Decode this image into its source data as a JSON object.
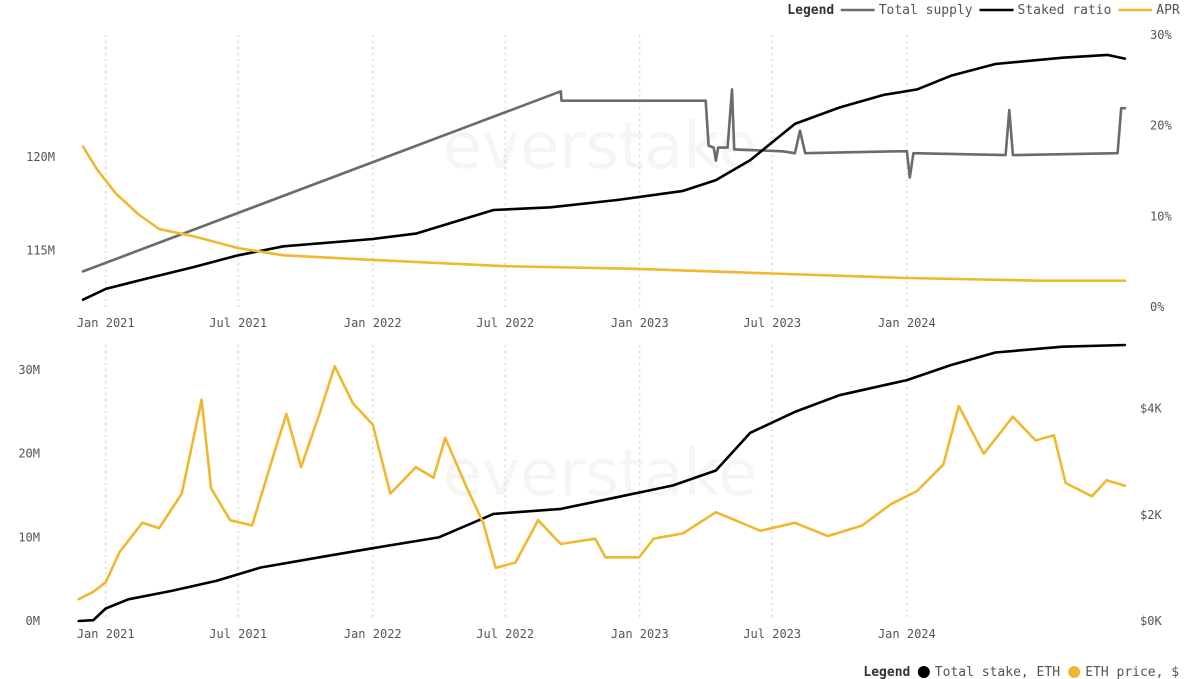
{
  "watermark": "everstake",
  "chart_data": [
    {
      "type": "line",
      "legend": {
        "title": "Legend",
        "placement": "top-right",
        "entries": [
          "Total supply",
          "Staked ratio",
          "APR"
        ]
      },
      "x_ticks": [
        "Jan 2021",
        "Jul 2021",
        "Jan 2022",
        "Jul 2022",
        "Jan 2023",
        "Jul 2023",
        "Jan 2024"
      ],
      "y_left_ticks": [
        "115M",
        "120M"
      ],
      "y_right_ticks": [
        "0%",
        "10%",
        "20%",
        "30%"
      ],
      "y_left_lim": [
        112,
        126.5
      ],
      "y_right_lim": [
        0,
        30
      ],
      "colors": {
        "Total supply": "#6b6b6b",
        "Staked ratio": "#000000",
        "APR": "#f0b82e"
      },
      "series": [
        {
          "name": "Total supply",
          "axis": "left",
          "unit": "M ETH",
          "points": [
            [
              "2020-12-01",
              113.9
            ],
            [
              "2022-09-15",
              123.5
            ],
            [
              "2022-09-16",
              123.0
            ],
            [
              "2023-04-01",
              123.0
            ],
            [
              "2023-04-05",
              120.6
            ],
            [
              "2023-04-12",
              120.5
            ],
            [
              "2023-04-15",
              119.8
            ],
            [
              "2023-04-18",
              120.5
            ],
            [
              "2023-05-01",
              120.5
            ],
            [
              "2023-05-07",
              123.6
            ],
            [
              "2023-05-10",
              120.4
            ],
            [
              "2023-07-15",
              120.3
            ],
            [
              "2023-08-01",
              120.2
            ],
            [
              "2023-08-08",
              121.4
            ],
            [
              "2023-08-15",
              120.2
            ],
            [
              "2023-12-20",
              120.3
            ],
            [
              "2024-01-01",
              120.3
            ],
            [
              "2024-01-05",
              118.9
            ],
            [
              "2024-01-10",
              120.2
            ],
            [
              "2024-05-15",
              120.1
            ],
            [
              "2024-05-20",
              122.5
            ],
            [
              "2024-05-25",
              120.1
            ],
            [
              "2024-10-15",
              120.2
            ],
            [
              "2024-10-20",
              122.6
            ],
            [
              "2024-10-25",
              122.6
            ]
          ]
        },
        {
          "name": "Staked ratio",
          "axis": "right",
          "unit": "%",
          "points": [
            [
              "2020-12-01",
              0.8
            ],
            [
              "2021-01-01",
              2.0
            ],
            [
              "2021-03-01",
              3.2
            ],
            [
              "2021-05-01",
              4.4
            ],
            [
              "2021-07-01",
              5.7
            ],
            [
              "2021-09-01",
              6.7
            ],
            [
              "2022-01-01",
              7.5
            ],
            [
              "2022-03-01",
              8.1
            ],
            [
              "2022-05-01",
              9.6
            ],
            [
              "2022-06-15",
              10.7
            ],
            [
              "2022-09-01",
              11.0
            ],
            [
              "2022-12-01",
              11.8
            ],
            [
              "2023-03-01",
              12.8
            ],
            [
              "2023-04-15",
              14.0
            ],
            [
              "2023-06-01",
              16.2
            ],
            [
              "2023-08-01",
              20.2
            ],
            [
              "2023-10-01",
              22.0
            ],
            [
              "2023-12-01",
              23.4
            ],
            [
              "2024-01-15",
              24.0
            ],
            [
              "2024-03-01",
              25.5
            ],
            [
              "2024-05-01",
              26.8
            ],
            [
              "2024-08-01",
              27.5
            ],
            [
              "2024-10-01",
              27.8
            ],
            [
              "2024-10-25",
              27.4
            ]
          ]
        },
        {
          "name": "APR",
          "axis": "right",
          "unit": "%",
          "points": [
            [
              "2020-12-01",
              17.7
            ],
            [
              "2020-12-20",
              15.2
            ],
            [
              "2021-01-15",
              12.5
            ],
            [
              "2021-02-15",
              10.2
            ],
            [
              "2021-03-15",
              8.6
            ],
            [
              "2021-05-01",
              7.8
            ],
            [
              "2021-07-01",
              6.5
            ],
            [
              "2021-09-01",
              5.7
            ],
            [
              "2022-01-01",
              5.2
            ],
            [
              "2022-07-01",
              4.5
            ],
            [
              "2023-01-01",
              4.2
            ],
            [
              "2023-07-01",
              3.7
            ],
            [
              "2024-01-01",
              3.2
            ],
            [
              "2024-07-01",
              2.9
            ],
            [
              "2024-10-25",
              2.9
            ]
          ]
        }
      ]
    },
    {
      "type": "line",
      "legend": {
        "title": "Legend",
        "placement": "bottom-right",
        "entries": [
          "Total stake, ETH",
          "ETH price, $"
        ]
      },
      "x_ticks": [
        "Jan 2021",
        "Jul 2021",
        "Jan 2022",
        "Jul 2022",
        "Jan 2023",
        "Jul 2023",
        "Jan 2024"
      ],
      "y_left_ticks": [
        "0M",
        "10M",
        "20M",
        "30M"
      ],
      "y_right_ticks": [
        "$0K",
        "$2K",
        "$4K"
      ],
      "y_left_lim": [
        0,
        33
      ],
      "y_right_lim": [
        0,
        5.2
      ],
      "colors": {
        "Total stake, ETH": "#000000",
        "ETH price, $": "#f0b82e"
      },
      "series": [
        {
          "name": "Total stake, ETH",
          "axis": "left",
          "unit": "M ETH",
          "points": [
            [
              "2020-11-25",
              0.0
            ],
            [
              "2020-12-15",
              0.1
            ],
            [
              "2021-01-01",
              1.5
            ],
            [
              "2021-02-01",
              2.6
            ],
            [
              "2021-04-01",
              3.6
            ],
            [
              "2021-06-01",
              4.8
            ],
            [
              "2021-08-01",
              6.4
            ],
            [
              "2021-11-01",
              7.8
            ],
            [
              "2022-01-01",
              8.7
            ],
            [
              "2022-04-01",
              10.0
            ],
            [
              "2022-06-15",
              12.8
            ],
            [
              "2022-09-15",
              13.4
            ],
            [
              "2022-12-01",
              14.8
            ],
            [
              "2023-02-15",
              16.2
            ],
            [
              "2023-04-15",
              18.0
            ],
            [
              "2023-06-01",
              22.5
            ],
            [
              "2023-08-01",
              25.0
            ],
            [
              "2023-10-01",
              27.0
            ],
            [
              "2024-01-01",
              28.8
            ],
            [
              "2024-03-01",
              30.6
            ],
            [
              "2024-05-01",
              32.1
            ],
            [
              "2024-08-01",
              32.8
            ],
            [
              "2024-10-25",
              33.0
            ]
          ]
        },
        {
          "name": "ETH price, $",
          "axis": "right",
          "unit": "$K",
          "points": [
            [
              "2020-11-25",
              0.41
            ],
            [
              "2020-12-15",
              0.55
            ],
            [
              "2021-01-01",
              0.73
            ],
            [
              "2021-01-20",
              1.3
            ],
            [
              "2021-02-20",
              1.85
            ],
            [
              "2021-03-15",
              1.75
            ],
            [
              "2021-04-15",
              2.4
            ],
            [
              "2021-05-12",
              4.17
            ],
            [
              "2021-05-25",
              2.5
            ],
            [
              "2021-06-20",
              1.9
            ],
            [
              "2021-07-20",
              1.8
            ],
            [
              "2021-08-20",
              3.2
            ],
            [
              "2021-09-05",
              3.9
            ],
            [
              "2021-09-25",
              2.9
            ],
            [
              "2021-10-20",
              3.9
            ],
            [
              "2021-11-10",
              4.8
            ],
            [
              "2021-12-05",
              4.1
            ],
            [
              "2022-01-01",
              3.7
            ],
            [
              "2022-01-25",
              2.4
            ],
            [
              "2022-03-01",
              2.9
            ],
            [
              "2022-03-25",
              2.7
            ],
            [
              "2022-04-10",
              3.45
            ],
            [
              "2022-05-10",
              2.5
            ],
            [
              "2022-06-01",
              1.85
            ],
            [
              "2022-06-18",
              1.0
            ],
            [
              "2022-07-15",
              1.1
            ],
            [
              "2022-08-15",
              1.9
            ],
            [
              "2022-09-15",
              1.45
            ],
            [
              "2022-11-01",
              1.55
            ],
            [
              "2022-11-15",
              1.2
            ],
            [
              "2022-12-31",
              1.2
            ],
            [
              "2023-01-20",
              1.55
            ],
            [
              "2023-03-01",
              1.65
            ],
            [
              "2023-04-15",
              2.05
            ],
            [
              "2023-06-15",
              1.7
            ],
            [
              "2023-08-01",
              1.85
            ],
            [
              "2023-09-15",
              1.6
            ],
            [
              "2023-11-01",
              1.8
            ],
            [
              "2023-12-10",
              2.2
            ],
            [
              "2024-01-15",
              2.45
            ],
            [
              "2024-02-20",
              2.95
            ],
            [
              "2024-03-12",
              4.05
            ],
            [
              "2024-04-15",
              3.15
            ],
            [
              "2024-05-25",
              3.85
            ],
            [
              "2024-06-25",
              3.4
            ],
            [
              "2024-07-20",
              3.5
            ],
            [
              "2024-08-05",
              2.6
            ],
            [
              "2024-09-10",
              2.35
            ],
            [
              "2024-09-30",
              2.65
            ],
            [
              "2024-10-25",
              2.55
            ]
          ]
        }
      ]
    }
  ]
}
